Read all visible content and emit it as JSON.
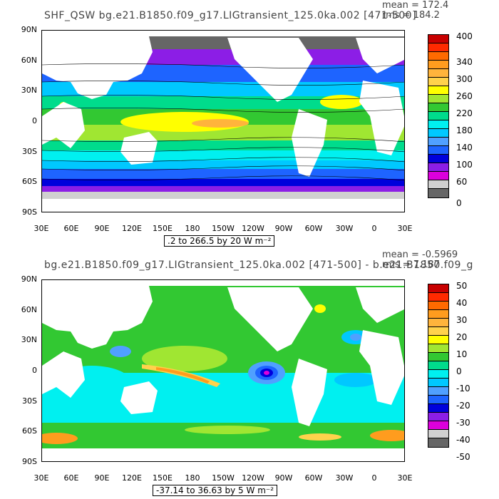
{
  "panel1": {
    "title": "SHF_QSW bg.e21.B1850.f09_g17.LIGtransient_125.0ka.002 [471-500]",
    "mean_text": "mean = 172.4",
    "rms_text": "rms = 184.2",
    "range_text": ".2 to 266.5 by 20  W m⁻²",
    "y_ticks": [
      "90N",
      "60N",
      "30N",
      "0",
      "30S",
      "60S",
      "90S"
    ],
    "x_ticks": [
      "30E",
      "60E",
      "90E",
      "120E",
      "150E",
      "180",
      "150W",
      "120W",
      "90W",
      "60W",
      "30W",
      "0",
      "30E"
    ],
    "colorbar_labels": [
      "400",
      "340",
      "300",
      "260",
      "220",
      "180",
      "140",
      "100",
      "60",
      "0"
    ],
    "colorbar_colors": [
      "#c80000",
      "#ff2a00",
      "#ff6a00",
      "#ff9c1e",
      "#ffb43c",
      "#ffd24c",
      "#ffff00",
      "#a0e632",
      "#32c832",
      "#00dc8c",
      "#00f0f0",
      "#00c8ff",
      "#50a0ff",
      "#1e64ff",
      "#0000dc",
      "#8c1ee6",
      "#dc00dc",
      "#d0d0d0",
      "#666666"
    ]
  },
  "panel2": {
    "title": "bg.e21.B1850.f09_g17.LIGtransient_125.0ka.002 [471-500] - b.e21.B1850.f09_g",
    "mean_text": "mean = -0.5969",
    "rms_text": "rms = 7.187",
    "range_text": "-37.14 to 36.63 by 5  W m⁻²",
    "y_ticks": [
      "90N",
      "60N",
      "30N",
      "0",
      "30S",
      "60S",
      "90S"
    ],
    "x_ticks": [
      "30E",
      "60E",
      "90E",
      "120E",
      "150E",
      "180",
      "150W",
      "120W",
      "90W",
      "60W",
      "30W",
      "0",
      "30E"
    ],
    "colorbar_labels": [
      "50",
      "40",
      "30",
      "20",
      "10",
      "0",
      "-10",
      "-20",
      "-30",
      "-40",
      "-50"
    ],
    "colorbar_colors": [
      "#c80000",
      "#ff2a00",
      "#ff6a00",
      "#ff9c1e",
      "#ffb43c",
      "#ffd24c",
      "#ffff00",
      "#a0e632",
      "#32c832",
      "#00dc8c",
      "#00f0f0",
      "#00c8ff",
      "#50a0ff",
      "#1e64ff",
      "#0000dc",
      "#8c1ee6",
      "#dc00dc",
      "#d0d0d0",
      "#666666"
    ]
  }
}
